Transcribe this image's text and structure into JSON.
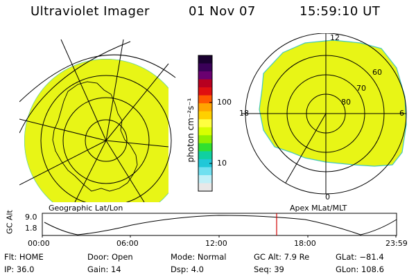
{
  "header": {
    "instrument": "Ultraviolet Imager",
    "date": "01 Nov 07",
    "time": "15:59:10 UT"
  },
  "colorbar": {
    "unit_label": "photon cm⁻²s⁻¹",
    "tick_100": "100",
    "tick_10": "10",
    "colors": [
      "#1a0030",
      "#3a0058",
      "#6a0070",
      "#b80020",
      "#e01010",
      "#ff5a00",
      "#ffa500",
      "#ffd000",
      "#ffff40",
      "#d8ff00",
      "#90f000",
      "#30e030",
      "#10d0a0",
      "#20c8d8",
      "#70e0f0",
      "#c0f0f8",
      "#e8e8e8"
    ]
  },
  "geo_map": {
    "label": "Geographic Lat/Lon",
    "fill_color": "#e8f516"
  },
  "apex_map": {
    "label": "Apex MLat/MLT",
    "mlt_12": "12",
    "mlt_18": "18",
    "mlt_6": "6",
    "mlt_0": "0",
    "lat_60": "60",
    "lat_70": "70",
    "lat_80": "80"
  },
  "altitude_plot": {
    "ylabel": "GC Alt",
    "y_max": "9.0",
    "y_min": "1.8",
    "x_ticks": [
      "00:00",
      "06:00",
      "12:00",
      "18:00",
      "23:59"
    ],
    "current_marker_color": "#d00000"
  },
  "status": {
    "flt": "Flt: HOME",
    "ip": "IP: 36.0",
    "door": "Door: Open",
    "gain": "Gain: 14",
    "mode": "Mode: Normal",
    "dsp": "Dsp:     4.0",
    "gc_alt": "GC Alt: 7.9 Re",
    "seq": "Seq: 39",
    "glat": "GLat: −81.4",
    "glon": "GLon: 108.6"
  }
}
